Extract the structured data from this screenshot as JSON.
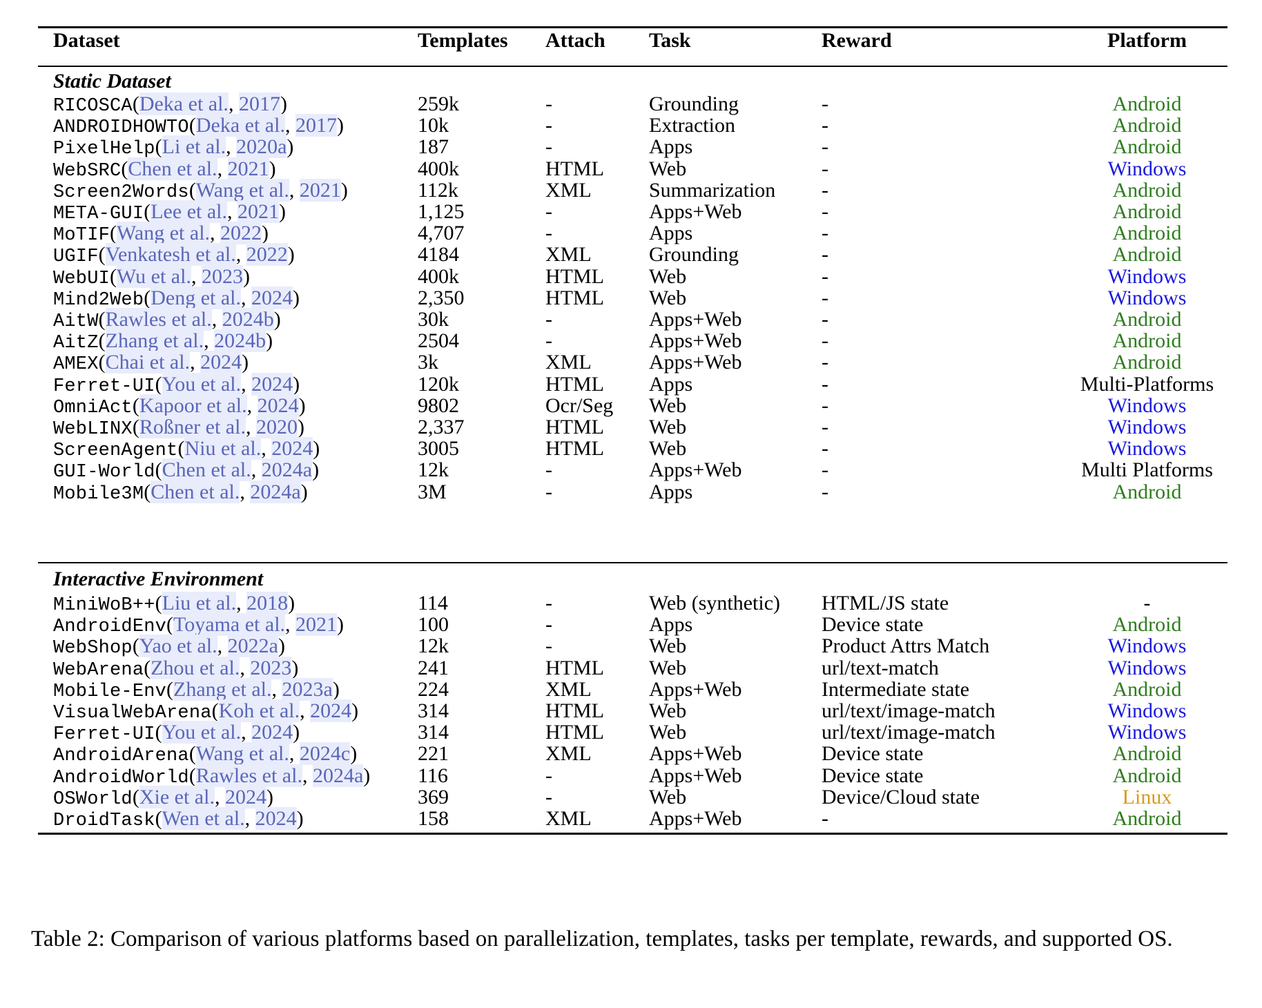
{
  "colors": {
    "android": "#2e7d1e",
    "windows": "#1a1adb",
    "linux": "#d99a1a",
    "default": "#000000",
    "cite": "#5a67b8"
  },
  "header": {
    "dataset": "Dataset",
    "templates": "Templates",
    "attach": "Attach",
    "task": "Task",
    "reward": "Reward",
    "platform": "Platform"
  },
  "sections": {
    "static": "Static Dataset",
    "interactive": "Interactive Environment"
  },
  "static_rows": [
    {
      "name": "RICOSCA",
      "cite_author": "Deka et al.",
      "cite_year": "2017",
      "templates": "259k",
      "attach": "-",
      "task": "Grounding",
      "reward": "-",
      "platform": "Android",
      "platform_color": "android"
    },
    {
      "name": "ANDROIDHOWTO",
      "cite_author": "Deka et al.",
      "cite_year": "2017",
      "templates": "10k",
      "attach": "-",
      "task": "Extraction",
      "reward": "-",
      "platform": "Android",
      "platform_color": "android"
    },
    {
      "name": "PixelHelp",
      "cite_author": "Li et al.",
      "cite_year": "2020a",
      "templates": "187",
      "attach": "-",
      "task": "Apps",
      "reward": "-",
      "platform": "Android",
      "platform_color": "android"
    },
    {
      "name": "WebSRC",
      "cite_author": "Chen et al.",
      "cite_year": "2021",
      "templates": "400k",
      "attach": "HTML",
      "task": "Web",
      "reward": "-",
      "platform": "Windows",
      "platform_color": "windows"
    },
    {
      "name": "Screen2Words",
      "cite_author": "Wang et al.",
      "cite_year": "2021",
      "templates": "112k",
      "attach": "XML",
      "task": "Summarization",
      "reward": "-",
      "platform": "Android",
      "platform_color": "android"
    },
    {
      "name": "META-GUI",
      "cite_author": "Lee et al.",
      "cite_year": "2021",
      "templates": "1,125",
      "attach": "-",
      "task": "Apps+Web",
      "reward": "-",
      "platform": "Android",
      "platform_color": "android"
    },
    {
      "name": "MoTIF",
      "cite_author": "Wang et al.",
      "cite_year": "2022",
      "templates": "4,707",
      "attach": "-",
      "task": "Apps",
      "reward": "-",
      "platform": "Android",
      "platform_color": "android"
    },
    {
      "name": "UGIF",
      "cite_author": "Venkatesh et al.",
      "cite_year": "2022",
      "templates": "4184",
      "attach": "XML",
      "task": "Grounding",
      "reward": "-",
      "platform": "Android",
      "platform_color": "android"
    },
    {
      "name": "WebUI",
      "cite_author": "Wu et al.",
      "cite_year": "2023",
      "templates": "400k",
      "attach": "HTML",
      "task": "Web",
      "reward": "-",
      "platform": "Windows",
      "platform_color": "windows"
    },
    {
      "name": "Mind2Web",
      "cite_author": "Deng et al.",
      "cite_year": "2024",
      "templates": "2,350",
      "attach": "HTML",
      "task": "Web",
      "reward": "-",
      "platform": "Windows",
      "platform_color": "windows"
    },
    {
      "name": "AitW",
      "cite_author": "Rawles et al.",
      "cite_year": "2024b",
      "templates": "30k",
      "attach": "-",
      "task": "Apps+Web",
      "reward": "-",
      "platform": "Android",
      "platform_color": "android"
    },
    {
      "name": "AitZ",
      "cite_author": "Zhang et al.",
      "cite_year": "2024b",
      "templates": "2504",
      "attach": "-",
      "task": "Apps+Web",
      "reward": "-",
      "platform": "Android",
      "platform_color": "android"
    },
    {
      "name": "AMEX",
      "cite_author": "Chai et al.",
      "cite_year": "2024",
      "templates": "3k",
      "attach": "XML",
      "task": "Apps+Web",
      "reward": "-",
      "platform": "Android",
      "platform_color": "android"
    },
    {
      "name": "Ferret-UI",
      "cite_author": "You et al.",
      "cite_year": "2024",
      "templates": "120k",
      "attach": "HTML",
      "task": "Apps",
      "reward": "-",
      "platform": "Multi-Platforms",
      "platform_color": "default"
    },
    {
      "name": "OmniAct",
      "cite_author": "Kapoor et al.",
      "cite_year": "2024",
      "templates": "9802",
      "attach": "Ocr/Seg",
      "task": "Web",
      "reward": "-",
      "platform": "Windows",
      "platform_color": "windows"
    },
    {
      "name": "WebLINX",
      "cite_author": "Roßner et al.",
      "cite_year": "2020",
      "templates": "2,337",
      "attach": "HTML",
      "task": "Web",
      "reward": "-",
      "platform": "Windows",
      "platform_color": "windows"
    },
    {
      "name": "ScreenAgent",
      "cite_author": "Niu et al.",
      "cite_year": "2024",
      "templates": "3005",
      "attach": "HTML",
      "task": "Web",
      "reward": "-",
      "platform": "Windows",
      "platform_color": "windows"
    },
    {
      "name": "GUI-World",
      "cite_author": "Chen et al.",
      "cite_year": "2024a",
      "templates": "12k",
      "attach": "-",
      "task": "Apps+Web",
      "reward": "-",
      "platform": "Multi Platforms",
      "platform_color": "default"
    },
    {
      "name": "Mobile3M",
      "cite_author": "Chen et al.",
      "cite_year": "2024a",
      "templates": "3M",
      "attach": "-",
      "task": "Apps",
      "reward": "-",
      "platform": "Android",
      "platform_color": "android"
    }
  ],
  "interactive_rows": [
    {
      "name": "MiniWoB++",
      "cite_author": "Liu et al.",
      "cite_year": "2018",
      "templates": "114",
      "attach": "-",
      "task": "Web (synthetic)",
      "reward": "HTML/JS state",
      "platform": "-",
      "platform_color": "default"
    },
    {
      "name": "AndroidEnv",
      "cite_author": "Toyama et al.",
      "cite_year": "2021",
      "templates": "100",
      "attach": "-",
      "task": "Apps",
      "reward": "Device state",
      "platform": "Android",
      "platform_color": "android"
    },
    {
      "name": "WebShop",
      "cite_author": "Yao et al.",
      "cite_year": "2022a",
      "templates": "12k",
      "attach": "-",
      "task": "Web",
      "reward": "Product Attrs Match",
      "platform": "Windows",
      "platform_color": "windows"
    },
    {
      "name": "WebArena",
      "cite_author": "Zhou et al.",
      "cite_year": "2023",
      "templates": "241",
      "attach": "HTML",
      "task": "Web",
      "reward": "url/text-match",
      "platform": "Windows",
      "platform_color": "windows"
    },
    {
      "name": "Mobile-Env",
      "cite_author": "Zhang et al.",
      "cite_year": "2023a",
      "templates": "224",
      "attach": "XML",
      "task": "Apps+Web",
      "reward": "Intermediate state",
      "platform": "Android",
      "platform_color": "android"
    },
    {
      "name": "VisualWebArena",
      "cite_author": "Koh et al.",
      "cite_year": "2024",
      "templates": "314",
      "attach": "HTML",
      "task": "Web",
      "reward": "url/text/image-match",
      "platform": "Windows",
      "platform_color": "windows"
    },
    {
      "name": "Ferret-UI",
      "cite_author": "You et al.",
      "cite_year": "2024",
      "templates": "314",
      "attach": "HTML",
      "task": "Web",
      "reward": "url/text/image-match",
      "platform": "Windows",
      "platform_color": "windows"
    },
    {
      "name": "AndroidArena",
      "cite_author": "Wang et al.",
      "cite_year": "2024c",
      "templates": "221",
      "attach": "XML",
      "task": "Apps+Web",
      "reward": "Device state",
      "platform": "Android",
      "platform_color": "android"
    },
    {
      "name": "AndroidWorld",
      "cite_author": "Rawles et al.",
      "cite_year": "2024a",
      "templates": "116",
      "attach": "-",
      "task": "Apps+Web",
      "reward": "Device state",
      "platform": "Android",
      "platform_color": "android"
    },
    {
      "name": "OSWorld",
      "cite_author": "Xie et al.",
      "cite_year": "2024",
      "templates": "369",
      "attach": "-",
      "task": "Web",
      "reward": "Device/Cloud state",
      "platform": "Linux",
      "platform_color": "linux"
    },
    {
      "name": "DroidTask",
      "cite_author": "Wen et al.",
      "cite_year": "2024",
      "templates": "158",
      "attach": "XML",
      "task": "Apps+Web",
      "reward": "-",
      "platform": "Android",
      "platform_color": "android"
    }
  ],
  "caption": "Table 2: Comparison of various platforms based on parallelization, templates, tasks per template, rewards, and supported OS."
}
